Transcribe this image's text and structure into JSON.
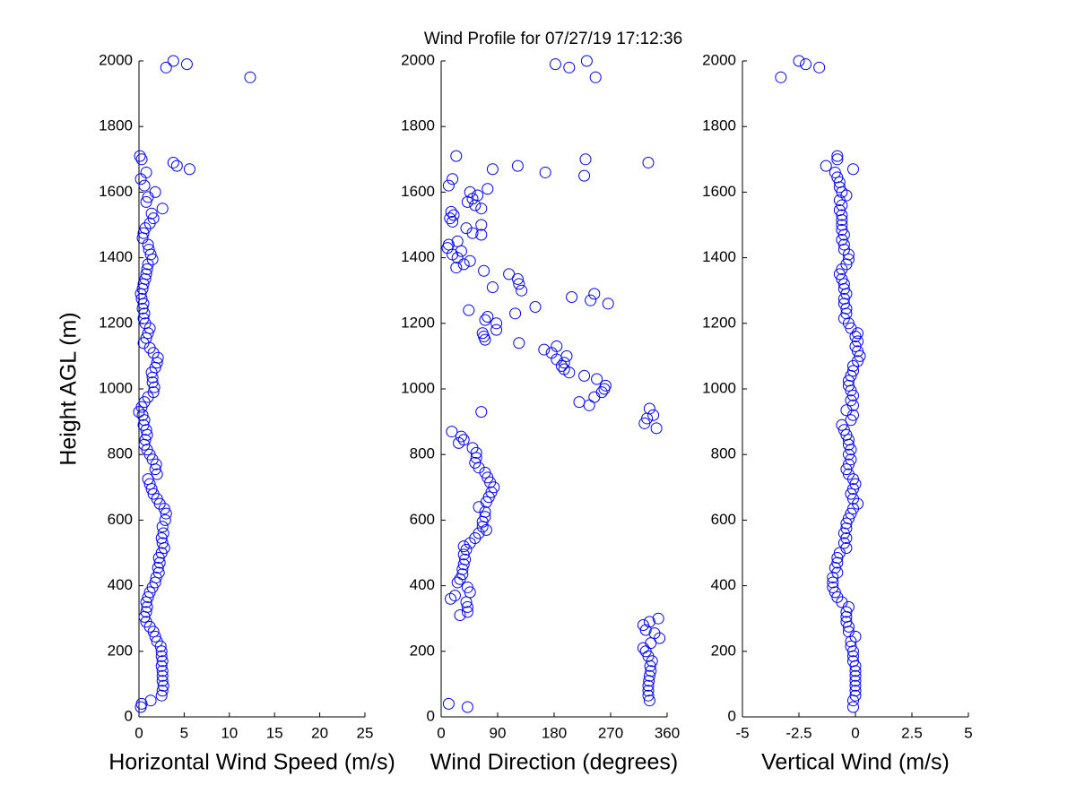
{
  "title": "Wind Profile for  07/27/19 17:12:36",
  "chart_data": [
    {
      "type": "scatter",
      "xlabel": "Horizontal Wind Speed (m/s)",
      "ylabel": "Height AGL (m)",
      "color": "#0000ff",
      "xlim": [
        0,
        25
      ],
      "xticks": [
        0,
        5,
        10,
        15,
        20,
        25
      ],
      "ylim": [
        0,
        2000
      ],
      "yticks": [
        0,
        200,
        400,
        600,
        800,
        1000,
        1200,
        1400,
        1600,
        1800,
        2000
      ],
      "x": [
        0.2,
        0.3,
        1.3,
        2.5,
        2.6,
        2.7,
        2.6,
        2.6,
        2.6,
        2.5,
        2.6,
        2.5,
        2.5,
        2.4,
        2.0,
        1.8,
        1.6,
        1.2,
        0.8,
        0.6,
        0.8,
        0.9,
        0.8,
        1.0,
        1.2,
        1.5,
        1.8,
        1.9,
        2.2,
        2.1,
        2.3,
        2.2,
        2.5,
        2.8,
        2.6,
        2.5,
        2.7,
        2.6,
        2.9,
        3.0,
        2.8,
        2.3,
        2.0,
        1.6,
        1.4,
        1.2,
        1.0,
        2.0,
        1.8,
        1.9,
        1.5,
        1.2,
        0.9,
        0.6,
        0.7,
        0.9,
        0.8,
        0.5,
        0.6,
        0.4,
        0.0,
        0.3,
        0.6,
        1.0,
        1.6,
        1.7,
        1.5,
        1.5,
        1.4,
        1.8,
        2.0,
        2.1,
        1.6,
        1.2,
        0.5,
        0.8,
        1.0,
        1.2,
        0.7,
        0.5,
        0.6,
        0.4,
        0.5,
        0.3,
        0.2,
        0.4,
        0.5,
        0.7,
        0.8,
        0.9,
        1.0,
        1.5,
        1.3,
        1.1,
        1.0,
        0.4,
        0.5,
        0.7,
        1.2,
        1.6,
        1.4,
        2.6,
        0.8,
        1.0,
        1.8,
        0.6,
        0.2,
        0.8,
        5.6,
        4.2,
        3.8,
        0.3,
        0.1,
        12.3,
        3.0,
        5.3,
        3.8
      ],
      "y": [
        30,
        40,
        50,
        65,
        80,
        95,
        110,
        125,
        140,
        155,
        170,
        185,
        200,
        215,
        230,
        245,
        260,
        275,
        290,
        305,
        320,
        335,
        350,
        365,
        380,
        395,
        410,
        425,
        440,
        455,
        470,
        485,
        500,
        515,
        530,
        545,
        560,
        580,
        600,
        620,
        635,
        650,
        665,
        680,
        695,
        710,
        725,
        740,
        755,
        770,
        785,
        800,
        815,
        830,
        845,
        860,
        875,
        890,
        905,
        920,
        930,
        945,
        960,
        975,
        990,
        1005,
        1020,
        1035,
        1050,
        1065,
        1080,
        1095,
        1110,
        1125,
        1140,
        1155,
        1170,
        1185,
        1200,
        1215,
        1230,
        1245,
        1260,
        1275,
        1290,
        1305,
        1320,
        1335,
        1350,
        1365,
        1380,
        1395,
        1410,
        1425,
        1440,
        1460,
        1475,
        1490,
        1505,
        1520,
        1535,
        1550,
        1570,
        1585,
        1600,
        1620,
        1640,
        1660,
        1670,
        1680,
        1690,
        1700,
        1710,
        1950,
        1980,
        1990,
        2000
      ]
    },
    {
      "type": "scatter",
      "xlabel": "Wind Direction (degrees)",
      "color": "#0000ff",
      "xlim": [
        0,
        360
      ],
      "xticks": [
        0,
        90,
        180,
        270,
        360
      ],
      "ylim": [
        0,
        2000
      ],
      "yticks": [
        0,
        200,
        400,
        600,
        800,
        1000,
        1200,
        1400,
        1600,
        1800,
        2000
      ],
      "x": [
        42,
        12,
        332,
        330,
        330,
        330,
        331,
        332,
        334,
        333,
        336,
        330,
        326,
        322,
        334,
        348,
        340,
        326,
        322,
        332,
        346,
        30,
        42,
        42,
        40,
        15,
        22,
        46,
        42,
        26,
        30,
        34,
        34,
        36,
        38,
        36,
        40,
        36,
        46,
        54,
        60,
        72,
        66,
        66,
        70,
        70,
        60,
        72,
        76,
        80,
        84,
        78,
        74,
        70,
        60,
        54,
        56,
        56,
        50,
        28,
        36,
        32,
        17,
        343,
        324,
        328,
        338,
        332,
        64,
        236,
        220,
        244,
        256,
        260,
        262,
        248,
        228,
        204,
        196,
        192,
        196,
        184,
        200,
        176,
        164,
        184,
        124,
        70,
        68,
        66,
        88,
        88,
        70,
        74,
        118,
        44,
        150,
        266,
        238,
        208,
        244,
        128,
        82,
        124,
        122,
        108,
        68,
        24,
        36,
        46,
        26,
        18,
        32,
        10,
        12,
        26,
        64,
        50,
        40,
        64,
        18,
        14,
        20,
        16,
        64,
        54,
        42,
        50,
        58,
        46,
        74,
        12,
        18,
        228,
        166,
        82,
        122,
        330,
        230,
        24,
        246,
        204,
        182,
        232
      ],
      "y": [
        30,
        40,
        50,
        65,
        80,
        95,
        110,
        125,
        140,
        155,
        170,
        185,
        200,
        210,
        225,
        240,
        255,
        265,
        280,
        290,
        300,
        310,
        320,
        335,
        350,
        360,
        370,
        380,
        395,
        410,
        420,
        435,
        450,
        465,
        480,
        495,
        510,
        520,
        530,
        545,
        560,
        570,
        580,
        595,
        610,
        625,
        640,
        655,
        670,
        685,
        700,
        715,
        730,
        745,
        760,
        775,
        790,
        805,
        820,
        835,
        845,
        855,
        870,
        880,
        895,
        910,
        920,
        940,
        930,
        950,
        960,
        975,
        990,
        1000,
        1010,
        1030,
        1040,
        1050,
        1060,
        1070,
        1080,
        1090,
        1100,
        1110,
        1120,
        1130,
        1140,
        1150,
        1160,
        1170,
        1180,
        1200,
        1210,
        1220,
        1230,
        1240,
        1250,
        1260,
        1270,
        1280,
        1290,
        1300,
        1310,
        1320,
        1335,
        1350,
        1360,
        1370,
        1380,
        1390,
        1400,
        1410,
        1420,
        1430,
        1440,
        1450,
        1470,
        1475,
        1490,
        1500,
        1510,
        1520,
        1530,
        1540,
        1550,
        1560,
        1570,
        1580,
        1590,
        1600,
        1610,
        1620,
        1640,
        1650,
        1660,
        1670,
        1680,
        1690,
        1700,
        1710,
        1950,
        1980,
        1990,
        2000
      ]
    },
    {
      "type": "scatter",
      "xlabel": "Vertical Wind (m/s)",
      "color": "#0000ff",
      "xlim": [
        -5,
        5
      ],
      "xticks": [
        -5,
        -2.5,
        0,
        2.5,
        5
      ],
      "ylim": [
        0,
        2000
      ],
      "yticks": [
        0,
        200,
        400,
        600,
        800,
        1000,
        1200,
        1400,
        1600,
        1800,
        2000
      ],
      "x": [
        -0.1,
        -0.1,
        0,
        0,
        0,
        0,
        0,
        0,
        0,
        -0.1,
        -0.1,
        -0.1,
        -0.2,
        -0.2,
        0,
        -0.3,
        -0.3,
        -0.4,
        -0.4,
        -0.4,
        -0.3,
        -0.6,
        -0.8,
        -0.9,
        -1.0,
        -1.0,
        -1.0,
        -0.8,
        -0.9,
        -0.8,
        -0.8,
        -0.7,
        -0.4,
        -0.5,
        -0.4,
        -0.5,
        -0.4,
        -0.4,
        -0.3,
        -0.2,
        -0.1,
        0.1,
        -0.1,
        -0.2,
        -0.1,
        0,
        -0.1,
        -0.3,
        -0.4,
        -0.3,
        -0.2,
        -0.3,
        -0.2,
        -0.3,
        -0.3,
        -0.4,
        -0.5,
        -0.6,
        -0.2,
        -0.1,
        -0.4,
        -0.1,
        -0.2,
        -0.1,
        -0.2,
        -0.3,
        -0.3,
        -0.2,
        -0.1,
        -0.1,
        0.1,
        0.2,
        0.1,
        0,
        0.1,
        0,
        0.1,
        -0.2,
        -0.3,
        -0.5,
        -0.4,
        -0.4,
        -0.5,
        -0.5,
        -0.4,
        -0.5,
        -0.5,
        -0.6,
        -0.7,
        -0.6,
        -0.4,
        -0.3,
        -0.3,
        -0.5,
        -0.5,
        -0.6,
        -0.5,
        -0.6,
        -0.6,
        -0.6,
        -0.6,
        -0.7,
        -0.6,
        -0.7,
        -0.4,
        -0.6,
        -0.7,
        -0.7,
        -0.8,
        -0.9,
        -0.1,
        -1.3,
        -0.8,
        -0.8,
        -3.3,
        -1.6,
        -2.2,
        -2.5
      ],
      "y": [
        30,
        50,
        65,
        80,
        95,
        110,
        125,
        140,
        155,
        170,
        185,
        200,
        215,
        230,
        245,
        260,
        275,
        290,
        305,
        320,
        335,
        350,
        365,
        380,
        395,
        410,
        425,
        440,
        455,
        470,
        485,
        500,
        515,
        530,
        545,
        560,
        575,
        590,
        605,
        620,
        635,
        650,
        665,
        680,
        695,
        710,
        725,
        740,
        755,
        770,
        785,
        800,
        815,
        830,
        845,
        860,
        875,
        890,
        905,
        920,
        935,
        950,
        965,
        980,
        995,
        1010,
        1025,
        1040,
        1055,
        1070,
        1085,
        1100,
        1115,
        1130,
        1145,
        1160,
        1170,
        1185,
        1200,
        1215,
        1230,
        1245,
        1260,
        1275,
        1290,
        1305,
        1320,
        1335,
        1350,
        1365,
        1380,
        1395,
        1410,
        1425,
        1440,
        1455,
        1470,
        1485,
        1500,
        1515,
        1530,
        1545,
        1560,
        1575,
        1590,
        1600,
        1615,
        1630,
        1645,
        1660,
        1670,
        1680,
        1700,
        1710,
        1950,
        1980,
        1990,
        2000
      ]
    }
  ]
}
